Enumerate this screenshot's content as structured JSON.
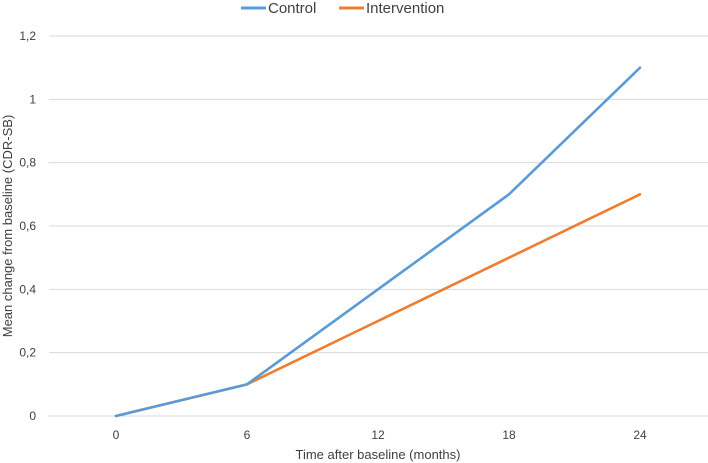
{
  "chart_data": {
    "type": "line",
    "title": "",
    "xlabel": "Time after baseline (months)",
    "ylabel": "Mean change from baseline (CDR-SB)",
    "categories": [
      "0",
      "6",
      "12",
      "18",
      "24"
    ],
    "x": [
      0,
      6,
      12,
      18,
      24
    ],
    "ylim": [
      0,
      1.2
    ],
    "yticks": [
      "0",
      "0,2",
      "0,4",
      "0,6",
      "0,8",
      "1",
      "1,2"
    ],
    "grid": "horizontal",
    "legend_position": "top",
    "series": [
      {
        "name": "Control",
        "color": "#5B9BD5",
        "values": [
          0,
          0.1,
          0.4,
          0.7,
          1.1
        ]
      },
      {
        "name": "Intervention",
        "color": "#ED7D31",
        "values": [
          0,
          0.1,
          0.3,
          0.5,
          0.7
        ]
      }
    ]
  }
}
